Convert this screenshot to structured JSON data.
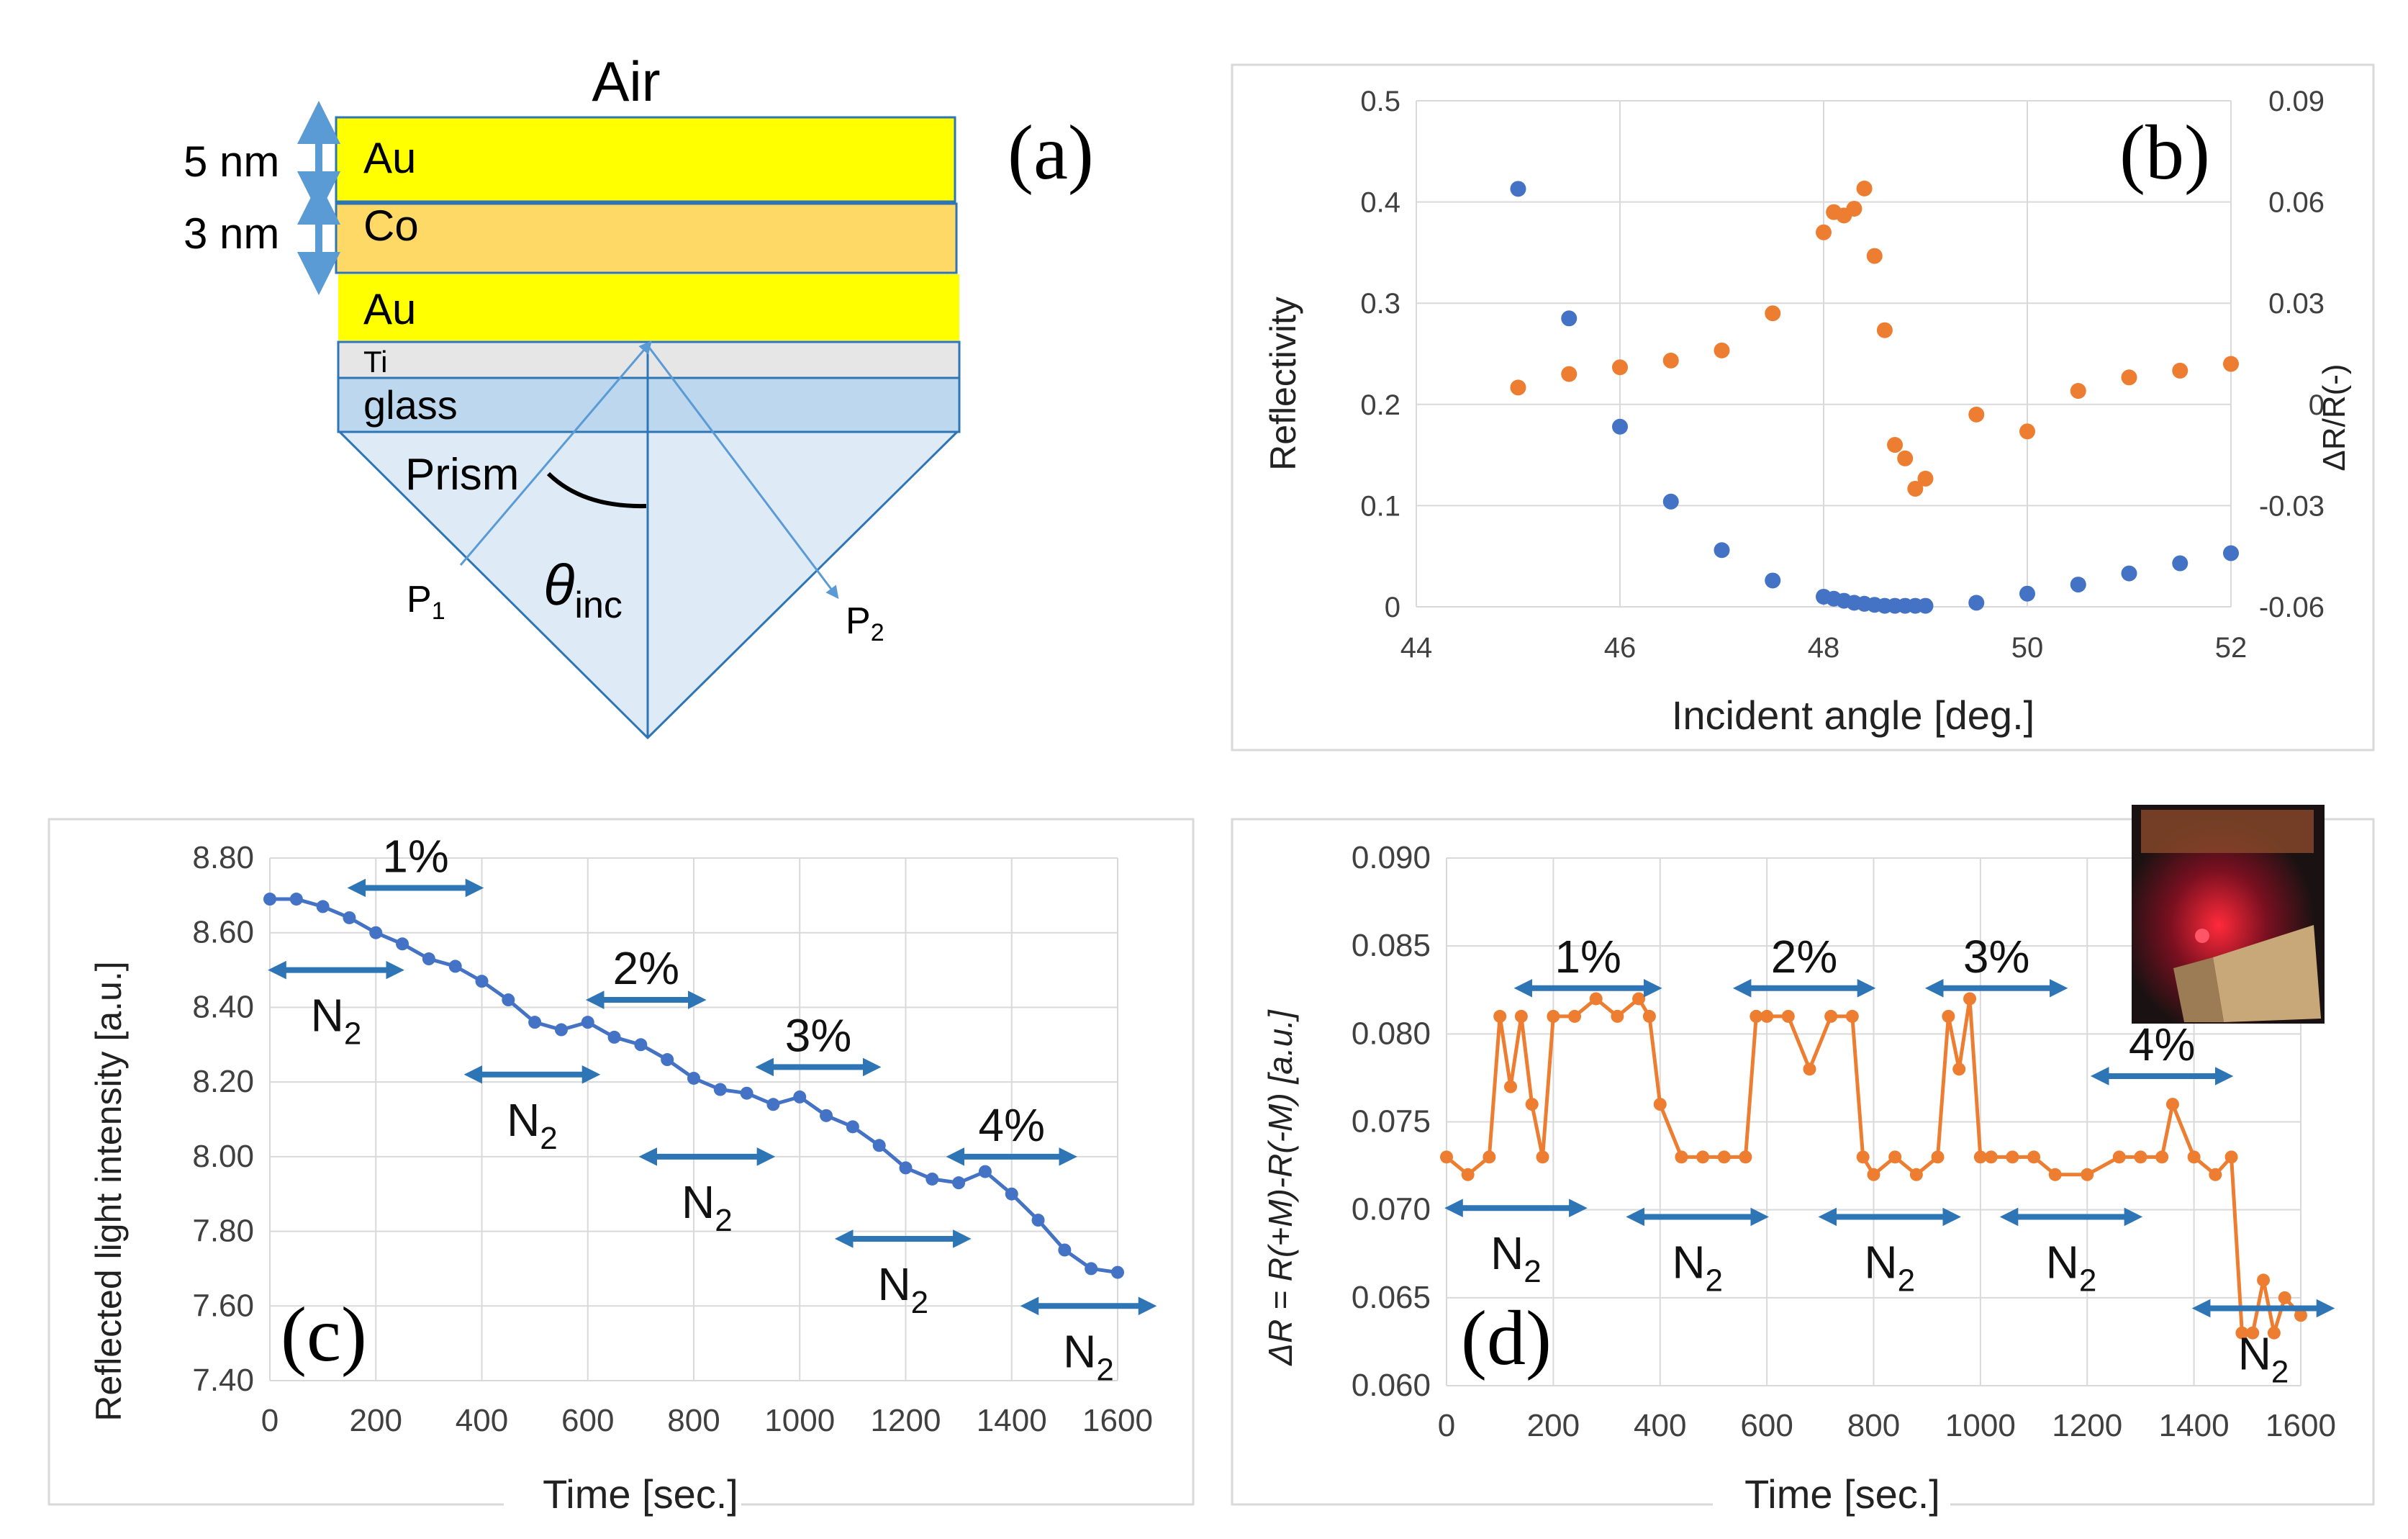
{
  "panel_a": {
    "label": "(a)",
    "air": "Air",
    "au_top": "Au",
    "co": "Co",
    "au_bottom": "Au",
    "ti": "Ti",
    "glass": "glass",
    "prism": "Prism",
    "thick_au": "5 nm",
    "thick_co": "3 nm",
    "p1": "P",
    "p1_sub": "1",
    "p2": "P",
    "p2_sub": "2",
    "theta": "θ",
    "theta_sub": "inc",
    "colors": {
      "au": "#ffff00",
      "co": "#ffd966",
      "ti": "#e6e6e6",
      "glass": "#bdd7ee",
      "prism": "#deebf7",
      "arrow": "#5b9bd5"
    }
  },
  "chart_data": [
    {
      "id": "b",
      "type": "scatter",
      "label": "(b)",
      "xlabel": "Incident angle [deg.]",
      "ylabel": "Reflectivity",
      "y2label": "ΔR/R(-)",
      "xlim": [
        44,
        52
      ],
      "ylim": [
        0,
        0.5
      ],
      "y2lim": [
        -0.06,
        0.09
      ],
      "xticks": [
        "44",
        "46",
        "48",
        "50",
        "52"
      ],
      "yticks": [
        "0",
        "0.1",
        "0.2",
        "0.3",
        "0.4",
        "0.5"
      ],
      "y2ticks": [
        "-0.06",
        "-0.03",
        "0",
        "0.03",
        "0.06",
        "0.09"
      ],
      "grid": true,
      "series": [
        {
          "name": "Reflectivity",
          "axis": "left",
          "color": "#4472c4",
          "x": [
            45,
            45.5,
            46,
            46.5,
            47,
            47.5,
            48,
            48.1,
            48.2,
            48.3,
            48.4,
            48.5,
            48.6,
            48.7,
            48.8,
            48.9,
            49,
            49.5,
            50,
            50.5,
            51,
            51.5,
            52
          ],
          "y": [
            0.413,
            0.285,
            0.178,
            0.104,
            0.056,
            0.026,
            0.01,
            0.008,
            0.006,
            0.004,
            0.003,
            0.002,
            0.001,
            0.001,
            0.001,
            0.001,
            0.001,
            0.004,
            0.013,
            0.022,
            0.033,
            0.043,
            0.053
          ]
        },
        {
          "name": "ΔR/R",
          "axis": "right",
          "color": "#ed7d31",
          "x": [
            45,
            45.5,
            46,
            46.5,
            47,
            47.5,
            48,
            48.1,
            48.2,
            48.3,
            48.4,
            48.5,
            48.6,
            48.7,
            48.8,
            48.9,
            49,
            49.5,
            50,
            50.5,
            51,
            51.5,
            52
          ],
          "y": [
            0.005,
            0.009,
            0.011,
            0.013,
            0.016,
            0.027,
            0.051,
            0.057,
            0.056,
            0.058,
            0.064,
            0.044,
            0.022,
            -0.012,
            -0.016,
            -0.025,
            -0.022,
            -0.003,
            -0.008,
            0.004,
            0.008,
            0.01,
            0.012
          ]
        }
      ]
    },
    {
      "id": "c",
      "type": "line",
      "label": "(c)",
      "xlabel": "Time [sec.]",
      "ylabel": "Reflected light intensity [a.u.]",
      "xlim": [
        0,
        1600
      ],
      "ylim": [
        7.4,
        8.8
      ],
      "xticks": [
        "0",
        "200",
        "400",
        "600",
        "800",
        "1000",
        "1200",
        "1400",
        "1600"
      ],
      "yticks": [
        "7.40",
        "7.60",
        "7.80",
        "8.00",
        "8.20",
        "8.40",
        "8.60",
        "8.80"
      ],
      "grid": true,
      "series": [
        {
          "name": "Reflected intensity",
          "color": "#4472c4",
          "x": [
            0,
            50,
            100,
            150,
            200,
            250,
            300,
            350,
            400,
            450,
            500,
            550,
            600,
            650,
            700,
            750,
            800,
            850,
            900,
            950,
            1000,
            1050,
            1100,
            1150,
            1200,
            1250,
            1300,
            1350,
            1400,
            1450,
            1500,
            1550,
            1600
          ],
          "y": [
            8.69,
            8.69,
            8.67,
            8.64,
            8.6,
            8.57,
            8.53,
            8.51,
            8.47,
            8.42,
            8.36,
            8.34,
            8.36,
            8.32,
            8.3,
            8.26,
            8.21,
            8.18,
            8.17,
            8.14,
            8.16,
            8.11,
            8.08,
            8.03,
            7.97,
            7.94,
            7.93,
            7.96,
            7.9,
            7.83,
            7.75,
            7.7,
            7.69
          ]
        }
      ],
      "annotations": [
        {
          "text": "1%",
          "sub": "",
          "x0": 150,
          "x1": 400,
          "y": 8.72
        },
        {
          "text": "2%",
          "sub": "",
          "x0": 600,
          "x1": 820,
          "y": 8.42
        },
        {
          "text": "3%",
          "sub": "",
          "x0": 920,
          "x1": 1150,
          "y": 8.24
        },
        {
          "text": "4%",
          "sub": "",
          "x0": 1280,
          "x1": 1520,
          "y": 8.0
        },
        {
          "text": "N",
          "sub": "2",
          "x0": 0,
          "x1": 250,
          "y": 8.5
        },
        {
          "text": "N",
          "sub": "2",
          "x0": 370,
          "x1": 620,
          "y": 8.22
        },
        {
          "text": "N",
          "sub": "2",
          "x0": 700,
          "x1": 950,
          "y": 8.0
        },
        {
          "text": "N",
          "sub": "2",
          "x0": 1070,
          "x1": 1320,
          "y": 7.78
        },
        {
          "text": "N",
          "sub": "2",
          "x0": 1420,
          "x1": 1670,
          "y": 7.6
        }
      ]
    },
    {
      "id": "d",
      "type": "line",
      "label": "(d)",
      "xlabel": "Time [sec.]",
      "ylabel": "ΔR = R(+M)-R(-M) [a.u.]",
      "xlim": [
        0,
        1600
      ],
      "ylim": [
        0.06,
        0.09
      ],
      "xticks": [
        "0",
        "200",
        "400",
        "600",
        "800",
        "1000",
        "1200",
        "1400",
        "1600"
      ],
      "yticks": [
        "0.060",
        "0.065",
        "0.070",
        "0.075",
        "0.080",
        "0.085",
        "0.090"
      ],
      "grid": true,
      "series": [
        {
          "name": "ΔR",
          "color": "#ed7d31",
          "x": [
            0,
            40,
            80,
            100,
            120,
            140,
            160,
            180,
            200,
            240,
            280,
            320,
            360,
            380,
            400,
            440,
            480,
            520,
            560,
            580,
            600,
            640,
            680,
            720,
            760,
            780,
            800,
            840,
            880,
            920,
            940,
            960,
            980,
            1000,
            1020,
            1060,
            1100,
            1140,
            1200,
            1260,
            1300,
            1340,
            1360,
            1400,
            1440,
            1470,
            1490,
            1510,
            1530,
            1550,
            1570,
            1600
          ],
          "y": [
            0.073,
            0.072,
            0.073,
            0.081,
            0.077,
            0.081,
            0.076,
            0.073,
            0.081,
            0.081,
            0.082,
            0.081,
            0.082,
            0.081,
            0.076,
            0.073,
            0.073,
            0.073,
            0.073,
            0.081,
            0.081,
            0.081,
            0.078,
            0.081,
            0.081,
            0.073,
            0.072,
            0.073,
            0.072,
            0.073,
            0.081,
            0.078,
            0.082,
            0.073,
            0.073,
            0.073,
            0.073,
            0.072,
            0.072,
            0.073,
            0.073,
            0.073,
            0.076,
            0.073,
            0.072,
            0.073,
            0.063,
            0.063,
            0.066,
            0.063,
            0.065,
            0.064
          ]
        }
      ],
      "annotations": [
        {
          "text": "1%",
          "sub": "",
          "x0": 130,
          "x1": 400,
          "y": 0.0826
        },
        {
          "text": "2%",
          "sub": "",
          "x0": 540,
          "x1": 800,
          "y": 0.0826
        },
        {
          "text": "3%",
          "sub": "",
          "x0": 900,
          "x1": 1160,
          "y": 0.0826
        },
        {
          "text": "4%",
          "sub": "",
          "x0": 1210,
          "x1": 1470,
          "y": 0.0776
        },
        {
          "text": "N",
          "sub": "2",
          "x0": 0,
          "x1": 260,
          "y": 0.0701
        },
        {
          "text": "N",
          "sub": "2",
          "x0": 340,
          "x1": 600,
          "y": 0.0696
        },
        {
          "text": "N",
          "sub": "2",
          "x0": 700,
          "x1": 960,
          "y": 0.0696
        },
        {
          "text": "N",
          "sub": "2",
          "x0": 1040,
          "x1": 1300,
          "y": 0.0696
        },
        {
          "text": "N",
          "sub": "2",
          "x0": 1400,
          "x1": 1660,
          "y": 0.0644
        }
      ]
    }
  ]
}
